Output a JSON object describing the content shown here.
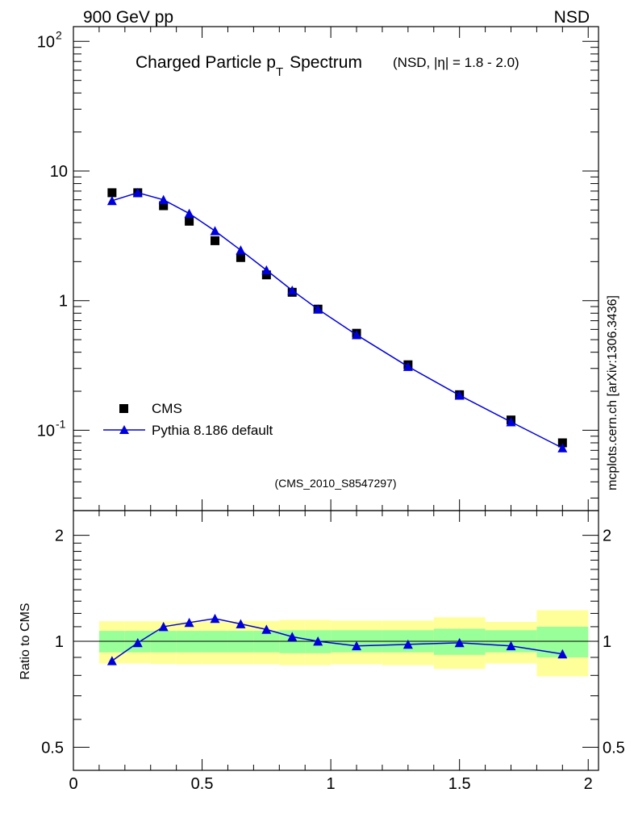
{
  "header": {
    "left": "900 GeV pp",
    "right": "NSD"
  },
  "title": {
    "main": "Charged Particle p",
    "subscript": "T",
    "suffix": "Spectrum",
    "qualifier": "(NSD, |η| = 1.8 - 2.0)"
  },
  "analysis_label": "(CMS_2010_S8547297)",
  "side_label": "mcplots.cern.ch [arXiv:1306.3436]",
  "colors": {
    "mc": "#0000dd",
    "data": "#000000",
    "band_inner": "#99ff99",
    "band_outer": "#ffff99",
    "analysis_label": "#999999"
  },
  "chart_data": [
    {
      "type": "scatter",
      "yscale": "log",
      "xlim": [
        0,
        2.04
      ],
      "ylim": [
        0.024,
        130
      ],
      "y_tick_labels": [
        "10^-1",
        "1",
        "10",
        "10^2"
      ],
      "legend_position": "bottom-left",
      "series": [
        {
          "name": "CMS",
          "marker": "square",
          "x": [
            0.15,
            0.25,
            0.35,
            0.45,
            0.55,
            0.65,
            0.75,
            0.85,
            0.95,
            1.1,
            1.3,
            1.5,
            1.7,
            1.9
          ],
          "y": [
            6.8,
            6.8,
            5.4,
            4.1,
            2.9,
            2.15,
            1.58,
            1.16,
            0.86,
            0.56,
            0.32,
            0.188,
            0.12,
            0.08
          ]
        },
        {
          "name": "Pythia 8.186 default",
          "marker": "triangle",
          "line": true,
          "x": [
            0.15,
            0.25,
            0.35,
            0.45,
            0.55,
            0.65,
            0.75,
            0.85,
            0.95,
            1.1,
            1.3,
            1.5,
            1.7,
            1.9
          ],
          "y": [
            5.9,
            6.8,
            6.0,
            4.7,
            3.45,
            2.45,
            1.72,
            1.2,
            0.86,
            0.545,
            0.31,
            0.186,
            0.116,
            0.073
          ]
        }
      ]
    },
    {
      "type": "line",
      "yscale": "log",
      "xlim": [
        0,
        2.04
      ],
      "ylim": [
        0.43,
        2.35
      ],
      "ylabel": "Ratio to CMS",
      "x_tick_labels": [
        "0",
        "0.5",
        "1",
        "1.5",
        "2"
      ],
      "y_tick_labels": [
        "0.5",
        "1",
        "2"
      ],
      "bands": {
        "edges": [
          0.1,
          0.2,
          0.3,
          0.4,
          0.5,
          0.6,
          0.7,
          0.8,
          0.9,
          1.0,
          1.2,
          1.4,
          1.6,
          1.8,
          2.0
        ],
        "inner_lo": [
          0.93,
          0.93,
          0.93,
          0.93,
          0.93,
          0.93,
          0.93,
          0.925,
          0.925,
          0.93,
          0.93,
          0.915,
          0.93,
          0.9
        ],
        "inner_hi": [
          1.07,
          1.07,
          1.07,
          1.07,
          1.07,
          1.07,
          1.07,
          1.075,
          1.075,
          1.075,
          1.075,
          1.085,
          1.075,
          1.1
        ],
        "outer_lo": [
          0.865,
          0.865,
          0.862,
          0.86,
          0.86,
          0.86,
          0.86,
          0.855,
          0.855,
          0.86,
          0.855,
          0.835,
          0.865,
          0.795
        ],
        "outer_hi": [
          1.14,
          1.14,
          1.14,
          1.14,
          1.14,
          1.142,
          1.142,
          1.15,
          1.15,
          1.145,
          1.145,
          1.17,
          1.135,
          1.225
        ]
      },
      "series": [
        {
          "name": "Pythia 8.186 default",
          "marker": "triangle",
          "x": [
            0.15,
            0.25,
            0.35,
            0.45,
            0.55,
            0.65,
            0.75,
            0.85,
            0.95,
            1.1,
            1.3,
            1.5,
            1.7,
            1.9
          ],
          "y": [
            0.88,
            0.99,
            1.1,
            1.13,
            1.16,
            1.12,
            1.08,
            1.03,
            1.0,
            0.97,
            0.98,
            0.99,
            0.97,
            0.92
          ]
        }
      ]
    }
  ]
}
